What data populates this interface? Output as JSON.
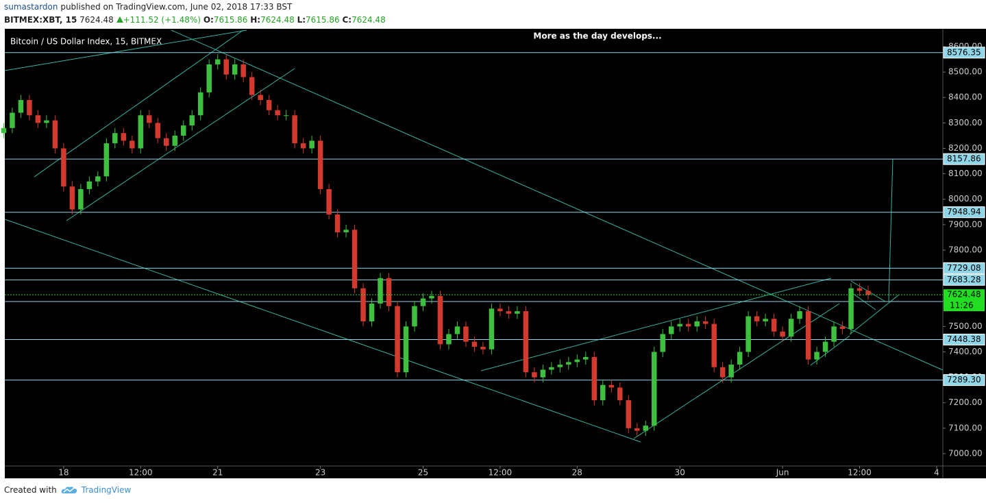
{
  "header": {
    "publisher": "sumastardon",
    "published": "published on TradingView.com, June 02, 2018 17:33 BST"
  },
  "legend": {
    "symbol": "BITMEX:XBT, 15",
    "last": 7624.48,
    "change": "+111.52 (+1.48%)",
    "ohlc": [
      {
        "key": "O:",
        "value": 7615.86
      },
      {
        "key": "H:",
        "value": 7624.48
      },
      {
        "key": "L:",
        "value": 7615.86
      },
      {
        "key": "C:",
        "value": 7624.48
      }
    ]
  },
  "chart_data": {
    "type": "candlestick",
    "title": "Bitcoin / US Dollar Index, 15, BITMEX",
    "annotation": "More as the day develops...",
    "up_color": "#3fbf3f",
    "down_color": "#d23a2f",
    "x": [
      -28,
      -24,
      -20,
      -16,
      -12,
      -8,
      -4,
      0,
      4,
      8,
      12,
      16,
      20,
      24,
      28,
      32,
      36,
      40,
      44,
      48,
      52,
      56,
      60,
      64,
      68,
      72,
      76,
      80,
      84,
      88,
      92,
      96,
      100,
      104,
      108,
      112,
      116,
      120,
      124,
      128,
      132,
      136,
      140,
      144,
      148,
      152,
      156,
      160,
      164,
      168,
      172,
      176,
      180,
      184,
      188,
      192,
      196,
      200,
      204,
      208,
      212,
      216,
      220,
      224,
      228,
      232,
      236,
      240,
      244,
      248,
      252,
      256,
      260,
      264,
      268,
      272,
      276,
      280,
      284,
      288,
      292,
      296,
      300,
      304,
      308,
      312,
      316,
      320,
      324,
      328,
      332,
      336,
      340,
      344,
      348,
      352,
      356,
      360,
      364,
      368,
      372,
      376
    ],
    "open": [
      8260,
      8280,
      8340,
      8390,
      8330,
      8300,
      8310,
      8200,
      8050,
      7960,
      8040,
      8070,
      8090,
      8220,
      8260,
      8230,
      8200,
      8330,
      8300,
      8240,
      8210,
      8250,
      8290,
      8330,
      8420,
      8530,
      8550,
      8490,
      8530,
      8480,
      8410,
      8390,
      8350,
      8330,
      8330,
      8220,
      8200,
      8230,
      8040,
      7940,
      7870,
      7880,
      7650,
      7520,
      7590,
      7690,
      7580,
      7320,
      7500,
      7580,
      7610,
      7620,
      7430,
      7470,
      7500,
      7440,
      7420,
      7410,
      7570,
      7560,
      7550,
      7560,
      7320,
      7300,
      7330,
      7340,
      7350,
      7360,
      7370,
      7380,
      7210,
      7270,
      7260,
      7210,
      7100,
      7090,
      7110,
      7400,
      7470,
      7500,
      7510,
      7500,
      7520,
      7510,
      7340,
      7300,
      7350,
      7400,
      7540,
      7520,
      7530,
      7480,
      7460,
      7530,
      7560,
      7370,
      7400,
      7440,
      7500,
      7490,
      7650,
      7640
    ],
    "high": [
      8300,
      8360,
      8410,
      8410,
      8350,
      8330,
      8330,
      8220,
      8070,
      8060,
      8090,
      8110,
      8240,
      8280,
      8280,
      8250,
      8350,
      8350,
      8320,
      8260,
      8270,
      8310,
      8350,
      8440,
      8550,
      8570,
      8570,
      8550,
      8550,
      8500,
      8430,
      8410,
      8370,
      8350,
      8350,
      8240,
      8250,
      8250,
      8060,
      7960,
      7900,
      7900,
      7670,
      7610,
      7710,
      7710,
      7600,
      7520,
      7600,
      7630,
      7640,
      7640,
      7490,
      7520,
      7520,
      7460,
      7440,
      7590,
      7590,
      7580,
      7580,
      7580,
      7340,
      7350,
      7360,
      7370,
      7380,
      7390,
      7400,
      7400,
      7290,
      7290,
      7280,
      7230,
      7120,
      7130,
      7420,
      7490,
      7520,
      7530,
      7530,
      7540,
      7540,
      7530,
      7360,
      7370,
      7420,
      7560,
      7560,
      7550,
      7550,
      7500,
      7550,
      7580,
      7580,
      7420,
      7460,
      7520,
      7520,
      7670,
      7670,
      7660
    ],
    "low": [
      8240,
      8260,
      8320,
      8310,
      8280,
      8280,
      8180,
      8030,
      7940,
      7940,
      8020,
      8050,
      8070,
      8200,
      8210,
      8180,
      8180,
      8280,
      8220,
      8190,
      8190,
      8230,
      8270,
      8310,
      8400,
      8510,
      8470,
      8470,
      8460,
      8390,
      8370,
      8330,
      8310,
      8310,
      8200,
      8180,
      8180,
      8020,
      7920,
      7850,
      7850,
      7630,
      7500,
      7500,
      7570,
      7560,
      7300,
      7300,
      7480,
      7560,
      7590,
      7410,
      7410,
      7450,
      7420,
      7400,
      7390,
      7390,
      7540,
      7530,
      7530,
      7300,
      7280,
      7280,
      7310,
      7320,
      7330,
      7340,
      7350,
      7190,
      7190,
      7240,
      7190,
      7080,
      7070,
      7070,
      7090,
      7380,
      7450,
      7480,
      7480,
      7480,
      7490,
      7320,
      7280,
      7280,
      7330,
      7380,
      7500,
      7500,
      7460,
      7440,
      7440,
      7510,
      7350,
      7350,
      7380,
      7420,
      7470,
      7470,
      7620,
      7604.48
    ],
    "close": [
      8280,
      8340,
      8390,
      8330,
      8300,
      8310,
      8200,
      8050,
      7960,
      8040,
      8070,
      8090,
      8220,
      8260,
      8230,
      8200,
      8330,
      8300,
      8240,
      8210,
      8250,
      8290,
      8330,
      8420,
      8530,
      8550,
      8490,
      8530,
      8480,
      8410,
      8390,
      8350,
      8330,
      8330,
      8220,
      8200,
      8230,
      8040,
      7940,
      7870,
      7880,
      7650,
      7520,
      7590,
      7690,
      7580,
      7320,
      7500,
      7580,
      7610,
      7620,
      7430,
      7470,
      7500,
      7440,
      7420,
      7410,
      7570,
      7560,
      7550,
      7560,
      7320,
      7300,
      7330,
      7340,
      7350,
      7360,
      7370,
      7380,
      7210,
      7270,
      7260,
      7210,
      7100,
      7090,
      7110,
      7400,
      7470,
      7500,
      7510,
      7500,
      7520,
      7510,
      7340,
      7300,
      7350,
      7400,
      7540,
      7520,
      7530,
      7480,
      7460,
      7530,
      7560,
      7370,
      7400,
      7440,
      7500,
      7490,
      7650,
      7640,
      7624.48
    ],
    "xlim": [
      -27.5,
      410.9
    ],
    "xticks": [
      {
        "value": 0,
        "label": "18"
      },
      {
        "value": 36,
        "label": "12:00"
      },
      {
        "value": 72,
        "label": "21"
      },
      {
        "value": 120,
        "label": "23"
      },
      {
        "value": 168,
        "label": "25"
      },
      {
        "value": 204,
        "label": "12:00"
      },
      {
        "value": 240,
        "label": "28"
      },
      {
        "value": 288,
        "label": "30"
      },
      {
        "value": 336,
        "label": "Jun"
      },
      {
        "value": 372,
        "label": "12:00"
      },
      {
        "value": 408,
        "label": "4"
      }
    ],
    "ylim": [
      6951.5,
      8670
    ],
    "yticks": [
      {
        "value": 7000,
        "label": "7000.00"
      },
      {
        "value": 7100,
        "label": "7100.00"
      },
      {
        "value": 7200,
        "label": "7200.00"
      },
      {
        "value": 7300,
        "label": "7300.00"
      },
      {
        "value": 7400,
        "label": "7400.00"
      },
      {
        "value": 7500,
        "label": "7500.00"
      },
      {
        "value": 7600,
        "label": "7600.00"
      },
      {
        "value": 7700,
        "label": "7700.00"
      },
      {
        "value": 7800,
        "label": "7800.00"
      },
      {
        "value": 7900,
        "label": "7900.00"
      },
      {
        "value": 8000,
        "label": "8000.00"
      },
      {
        "value": 8100,
        "label": "8100.00"
      },
      {
        "value": 8200,
        "label": "8200.00"
      },
      {
        "value": 8300,
        "label": "8300.00"
      },
      {
        "value": 8400,
        "label": "8400.00"
      },
      {
        "value": 8500,
        "label": "8500.00"
      },
      {
        "value": 8600,
        "label": "8600.00"
      }
    ],
    "level_color": "#8fd6e8",
    "levels": [
      {
        "value": 8576.35,
        "label": "8576.35"
      },
      {
        "value": 8157.86,
        "label": "8157.86"
      },
      {
        "value": 7948.94,
        "label": "7948.94"
      },
      {
        "value": 7729.08,
        "label": "7729.08"
      },
      {
        "value": 7683.28,
        "label": "7683.28"
      },
      {
        "value": 7448.38,
        "label": "7448.38"
      },
      {
        "value": 7289.3,
        "label": "7289.30"
      }
    ],
    "last_price": {
      "value": 7624.48,
      "label": "7624.48",
      "timer": "11:26",
      "color": "#22dd22"
    }
  },
  "footer": {
    "created": "Created with",
    "brand": "TradingView"
  }
}
